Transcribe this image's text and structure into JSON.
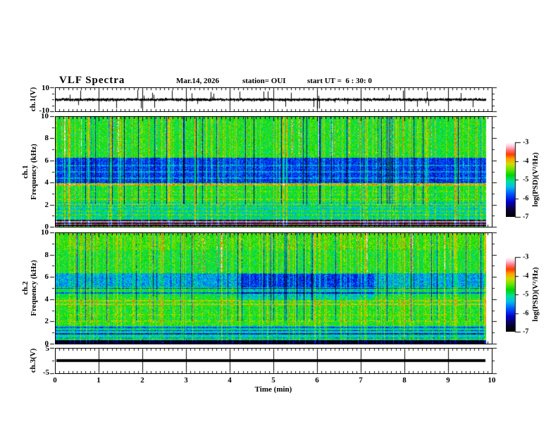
{
  "header": {
    "title": "VLF Spectra",
    "date": "Mar.14, 2026",
    "station": "station= OUI",
    "start_ut": "start UT =  6 : 30: 0"
  },
  "axes": {
    "time_label": "Time (min)",
    "time_range": [
      0,
      10
    ],
    "time_ticks": [
      "0",
      "1",
      "2",
      "3",
      "4",
      "5",
      "6",
      "7",
      "8",
      "9",
      "10"
    ],
    "ch1_wave": {
      "label": "ch.1(V)",
      "tick_labels": [
        "10",
        "-10"
      ],
      "range": [
        -10,
        10
      ]
    },
    "spec1": {
      "label_ch": "ch.1",
      "label_freq": "Frequency (kHz)",
      "tick_labels": [
        "10",
        "8",
        "6",
        "4",
        "2",
        "0"
      ],
      "range": [
        0,
        10
      ]
    },
    "spec2": {
      "label_ch": "ch.2",
      "label_freq": "Frequency (kHz)",
      "tick_labels": [
        "10",
        "8",
        "6",
        "4",
        "2",
        "0"
      ],
      "range": [
        0,
        10
      ]
    },
    "ch3": {
      "label": "ch.3(V)",
      "tick_labels": [
        "5",
        "-5"
      ],
      "range": [
        -5,
        5
      ]
    }
  },
  "colorbars": [
    {
      "label": "log(PSD)(V²/Hz)",
      "tick_labels": [
        "-3",
        "-4",
        "-5",
        "-6",
        "-7"
      ],
      "range": [
        -7,
        -3
      ]
    },
    {
      "label": "log(PSD)(V²/Hz)",
      "tick_labels": [
        "-3",
        "-4",
        "-5",
        "-6",
        "-7"
      ],
      "range": [
        -7,
        -3
      ]
    }
  ],
  "chart_data": [
    {
      "type": "line",
      "name": "ch1-waveform",
      "ylabel": "ch.1(V)",
      "ylim": [
        -10,
        10
      ],
      "xlim": [
        0,
        10
      ],
      "data_end_min": 9.85,
      "signal": {
        "baseline_v": 0,
        "noise_sigma_v": 1.0,
        "spike_prob_per_column": 0.06,
        "spike_amp_v": [
          2.5,
          8.5
        ]
      },
      "description": "broadband noise of about +/-1.5 V around 0 V with frequent impulsive spikes up to about +/-8 V"
    },
    {
      "type": "heatmap",
      "name": "ch1-spectrogram",
      "ylabel": "Frequency (kHz)",
      "ylim": [
        0,
        10
      ],
      "xlim": [
        0,
        10
      ],
      "data_end_min": 9.85,
      "psd_range_log": [
        -7,
        -3
      ],
      "noise_sigma_psd": 0.38,
      "bands": [
        {
          "f": [
            0.0,
            0.06
          ],
          "psd": -4.7
        },
        {
          "f": [
            0.06,
            0.14
          ],
          "psd": -6.8
        },
        {
          "f": [
            0.14,
            0.24
          ],
          "psd": -3.7
        },
        {
          "f": [
            0.24,
            0.36
          ],
          "psd": -6.5
        },
        {
          "f": [
            0.36,
            0.46
          ],
          "psd": -3.9
        },
        {
          "f": [
            0.46,
            0.6
          ],
          "psd": -6.3
        },
        {
          "f": [
            0.6,
            0.9
          ],
          "psd": -5.05
        },
        {
          "f": [
            0.9,
            2.2
          ],
          "psd": -5.25
        },
        {
          "f": [
            2.2,
            3.7
          ],
          "psd": -4.85
        },
        {
          "f": [
            3.7,
            3.95
          ],
          "psd": -4.55
        },
        {
          "f": [
            3.95,
            6.3
          ],
          "psd": -5.95
        },
        {
          "f": [
            6.3,
            10.01
          ],
          "psd": -4.8
        }
      ],
      "h_lines": [
        {
          "f": 1.05,
          "psd": -4.75
        },
        {
          "f": 1.4,
          "psd": -4.8
        },
        {
          "f": 1.75,
          "psd": -4.75
        },
        {
          "f": 2.05,
          "psd": -4.6
        },
        {
          "f": 2.5,
          "psd": -4.55
        },
        {
          "f": 2.9,
          "psd": -4.6
        },
        {
          "f": 3.2,
          "psd": -4.65
        },
        {
          "f": 3.85,
          "psd": -3.95
        },
        {
          "f": 4.4,
          "psd": -5.5
        },
        {
          "f": 5.0,
          "psd": -5.55
        },
        {
          "f": 5.6,
          "psd": -5.6
        }
      ],
      "streaks": {
        "bright_density": 0.3,
        "bright_boost_psd": [
          0.15,
          0.85
        ],
        "dark_density": 0.055,
        "dark_drop_psd": 1.35,
        "red_top_density": 0.035,
        "red_top_boost_psd": 1.35
      }
    },
    {
      "type": "heatmap",
      "name": "ch2-spectrogram",
      "ylabel": "Frequency (kHz)",
      "ylim": [
        0,
        10
      ],
      "xlim": [
        0,
        10
      ],
      "data_end_min": 9.85,
      "psd_range_log": [
        -7,
        -3
      ],
      "noise_sigma_psd": 0.38,
      "bands": [
        {
          "f": [
            0.0,
            0.28
          ],
          "psd": -6.8
        },
        {
          "f": [
            0.28,
            0.55
          ],
          "psd": -5.5
        },
        {
          "f": [
            0.55,
            1.6
          ],
          "psd": -5.2
        },
        {
          "f": [
            1.6,
            4.2
          ],
          "psd": -4.75
        },
        {
          "f": [
            4.2,
            5.1
          ],
          "psd": -4.9
        },
        {
          "f": [
            5.1,
            6.4
          ],
          "psd": -5.5
        },
        {
          "f": [
            6.4,
            8.5
          ],
          "psd": -4.8
        },
        {
          "f": [
            8.5,
            10.01
          ],
          "psd": -4.65
        }
      ],
      "h_lines": [
        {
          "f": 0.35,
          "psd": -4.9
        },
        {
          "f": 0.85,
          "psd": -6.1
        },
        {
          "f": 1.15,
          "psd": -6.0
        },
        {
          "f": 1.45,
          "psd": -5.85
        },
        {
          "f": 2.0,
          "psd": -4.5
        },
        {
          "f": 2.6,
          "psd": -4.55
        },
        {
          "f": 3.55,
          "psd": -4.2
        },
        {
          "f": 3.9,
          "psd": -4.3
        },
        {
          "f": 4.6,
          "psd": -5.8
        },
        {
          "f": 5.0,
          "psd": -5.9
        }
      ],
      "patch": {
        "t_range": [
          4.2,
          7.3
        ],
        "f_range": [
          3.9,
          6.3
        ],
        "delta_psd": -0.45
      },
      "streaks": {
        "bright_density": 0.27,
        "bright_boost_psd": [
          0.12,
          0.75
        ],
        "dark_density": 0.04,
        "dark_drop_psd": 1.1,
        "red_top_density": 0.03,
        "red_top_boost_psd": 1.25
      }
    },
    {
      "type": "line",
      "name": "ch3-waveform",
      "ylabel": "ch.3(V)",
      "ylim": [
        -5,
        5
      ],
      "xlim": [
        0,
        10
      ],
      "data_end_min": 9.85,
      "value_v": 0,
      "description": "constant 0 V signal drawn as a thick black horizontal line"
    }
  ],
  "colormap": {
    "stops": [
      [
        0.0,
        "#000000"
      ],
      [
        0.1,
        "#0a003c"
      ],
      [
        0.2,
        "#0000c8"
      ],
      [
        0.3,
        "#0050ff"
      ],
      [
        0.4,
        "#00beeb"
      ],
      [
        0.48,
        "#00e196"
      ],
      [
        0.56,
        "#00d700"
      ],
      [
        0.64,
        "#6ee600"
      ],
      [
        0.71,
        "#d2dc00"
      ],
      [
        0.78,
        "#ffa000"
      ],
      [
        0.84,
        "#ff3c00"
      ],
      [
        0.9,
        "#ff7882"
      ],
      [
        0.95,
        "#ffc8d7"
      ],
      [
        1.0,
        "#ffffff"
      ]
    ]
  }
}
